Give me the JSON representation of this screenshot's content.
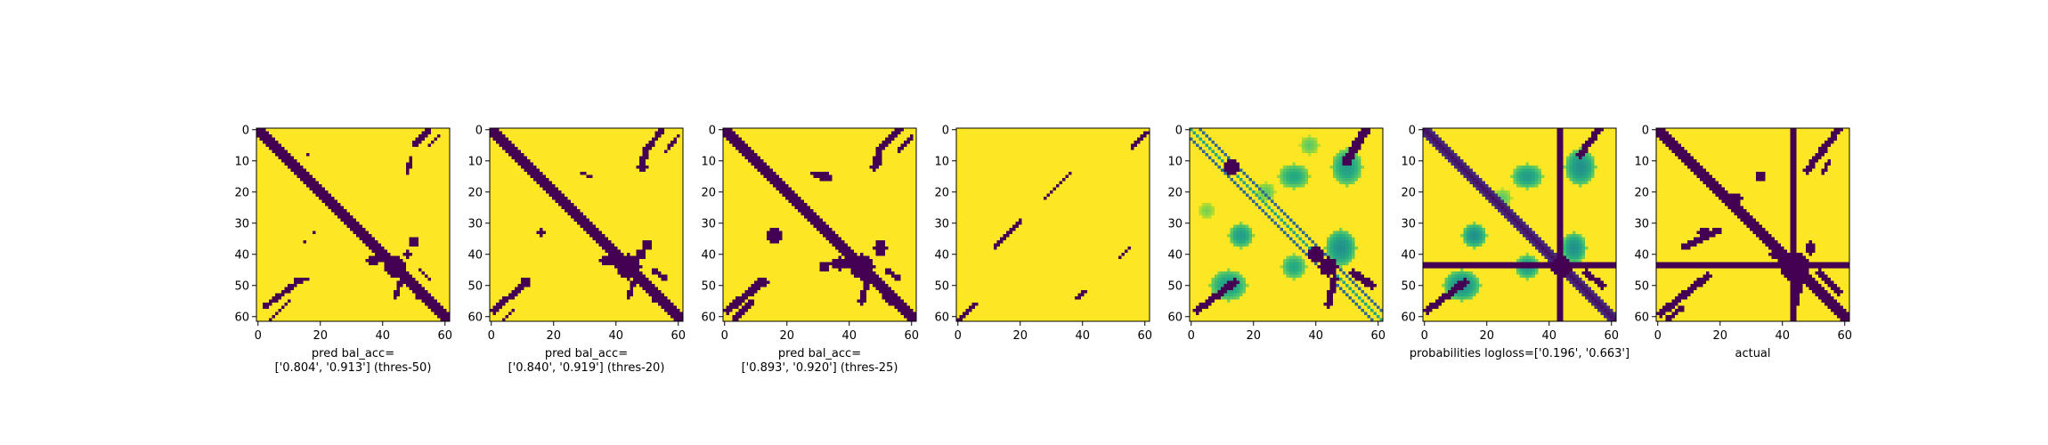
{
  "chart_data": [
    {
      "type": "heatmap",
      "xlabel": [
        "pred bal_acc=",
        "['0.804', '0.913'] (thres-50)"
      ],
      "x_ticks": [
        0,
        20,
        40,
        60
      ],
      "y_ticks": [
        0,
        10,
        20,
        30,
        40,
        50,
        60
      ],
      "xlim": [
        0,
        62
      ],
      "ylim": [
        62,
        0
      ],
      "colormap": "viridis",
      "binary": true,
      "diagonal": {
        "offset": 0,
        "halfwidth": 2
      },
      "blobs": [
        {
          "c": 44,
          "r": 44,
          "rx": 3.5,
          "ry": 3.5
        },
        {
          "c": 50,
          "r": 36,
          "rx": 1.5,
          "ry": 1.5
        },
        {
          "c": 37,
          "r": 42,
          "rx": 2.5,
          "ry": 1.2
        },
        {
          "c": 52,
          "r": 53,
          "rx": 1.6,
          "ry": 1.6
        },
        {
          "c": 48,
          "r": 40,
          "rx": 1.4,
          "ry": 1.4
        },
        {
          "c": 18,
          "r": 33,
          "rx": 0.8,
          "ry": 0.8
        },
        {
          "c": 15,
          "r": 36,
          "rx": 0.7,
          "ry": 0.7
        },
        {
          "c": 16,
          "r": 8,
          "rx": 0.7,
          "ry": 0.7
        }
      ],
      "lines": [
        {
          "x1": 2,
          "y1": 57,
          "x2": 14,
          "y2": 48,
          "w": 0.9
        },
        {
          "x1": 12,
          "y1": 48,
          "x2": 16,
          "y2": 48,
          "w": 0.8
        },
        {
          "x1": 4,
          "y1": 61,
          "x2": 10,
          "y2": 55,
          "w": 0.7
        },
        {
          "x1": 55,
          "y1": 0,
          "x2": 50,
          "y2": 5,
          "w": 0.8
        },
        {
          "x1": 58,
          "y1": 2,
          "x2": 55,
          "y2": 5,
          "w": 0.6
        },
        {
          "x1": 49,
          "y1": 9,
          "x2": 48,
          "y2": 14,
          "w": 0.7
        },
        {
          "x1": 52,
          "y1": 45,
          "x2": 55,
          "y2": 48,
          "w": 0.7
        },
        {
          "x1": 46,
          "y1": 48,
          "x2": 44,
          "y2": 54,
          "w": 0.8
        }
      ],
      "spots": []
    },
    {
      "type": "heatmap",
      "xlabel": [
        "pred bal_acc=",
        "['0.840', '0.919'] (thres-20)"
      ],
      "x_ticks": [
        0,
        20,
        40,
        60
      ],
      "y_ticks": [
        0,
        10,
        20,
        30,
        40,
        50,
        60
      ],
      "xlim": [
        0,
        62
      ],
      "ylim": [
        62,
        0
      ],
      "colormap": "viridis",
      "binary": true,
      "diagonal": {
        "offset": 0,
        "halfwidth": 2.4
      },
      "blobs": [
        {
          "c": 44,
          "r": 44,
          "rx": 4,
          "ry": 4
        },
        {
          "c": 50,
          "r": 37,
          "rx": 1.8,
          "ry": 1.8
        },
        {
          "c": 38,
          "r": 42,
          "rx": 3,
          "ry": 1.4
        },
        {
          "c": 53,
          "r": 54,
          "rx": 1.8,
          "ry": 1.8
        },
        {
          "c": 48,
          "r": 40,
          "rx": 1.6,
          "ry": 1.6
        },
        {
          "c": 16,
          "r": 33,
          "rx": 1,
          "ry": 1.6
        },
        {
          "c": 31,
          "r": 15,
          "rx": 0.7,
          "ry": 0.7
        },
        {
          "c": 11,
          "r": 49,
          "rx": 1.6,
          "ry": 1.6
        },
        {
          "c": 49,
          "r": 12,
          "rx": 1.2,
          "ry": 1.2
        }
      ],
      "lines": [
        {
          "x1": 1,
          "y1": 58,
          "x2": 10,
          "y2": 50,
          "w": 1
        },
        {
          "x1": 4,
          "y1": 61,
          "x2": 7,
          "y2": 58,
          "w": 0.7
        },
        {
          "x1": 55,
          "y1": 0,
          "x2": 50,
          "y2": 6,
          "w": 0.9
        },
        {
          "x1": 60,
          "y1": 2,
          "x2": 56,
          "y2": 7,
          "w": 0.6
        },
        {
          "x1": 50,
          "y1": 6,
          "x2": 48,
          "y2": 12,
          "w": 1
        },
        {
          "x1": 52,
          "y1": 45,
          "x2": 56,
          "y2": 48,
          "w": 0.8
        },
        {
          "x1": 46,
          "y1": 48,
          "x2": 44,
          "y2": 54,
          "w": 0.9
        },
        {
          "x1": 29,
          "y1": 14,
          "x2": 32,
          "y2": 15,
          "w": 0.6
        }
      ],
      "spots": []
    },
    {
      "type": "heatmap",
      "xlabel": [
        "pred bal_acc=",
        "['0.893', '0.920'] (thres-25)"
      ],
      "x_ticks": [
        0,
        20,
        40,
        60
      ],
      "y_ticks": [
        0,
        10,
        20,
        30,
        40,
        50,
        60
      ],
      "xlim": [
        0,
        62
      ],
      "ylim": [
        62,
        0
      ],
      "colormap": "viridis",
      "binary": true,
      "diagonal": {
        "offset": 0,
        "halfwidth": 2.4
      },
      "blobs": [
        {
          "c": 44,
          "r": 44,
          "rx": 4,
          "ry": 4
        },
        {
          "c": 50,
          "r": 38,
          "rx": 2,
          "ry": 2.5
        },
        {
          "c": 37,
          "r": 43,
          "rx": 3.2,
          "ry": 2
        },
        {
          "c": 53,
          "r": 54,
          "rx": 2,
          "ry": 2
        },
        {
          "c": 16,
          "r": 34,
          "rx": 2.2,
          "ry": 2.5
        },
        {
          "c": 32,
          "r": 15,
          "rx": 2.4,
          "ry": 1.8
        },
        {
          "c": 12,
          "r": 49,
          "rx": 2.2,
          "ry": 1.6
        },
        {
          "c": 49,
          "r": 10,
          "rx": 1.6,
          "ry": 2
        },
        {
          "c": 32,
          "r": 44,
          "rx": 1.6,
          "ry": 1.6
        }
      ],
      "lines": [
        {
          "x1": 1,
          "y1": 58,
          "x2": 12,
          "y2": 49,
          "w": 1.2
        },
        {
          "x1": 3,
          "y1": 61,
          "x2": 9,
          "y2": 55,
          "w": 0.8
        },
        {
          "x1": 56,
          "y1": 0,
          "x2": 50,
          "y2": 6,
          "w": 1
        },
        {
          "x1": 60,
          "y1": 2,
          "x2": 56,
          "y2": 7,
          "w": 0.7
        },
        {
          "x1": 50,
          "y1": 6,
          "x2": 48,
          "y2": 12,
          "w": 1.1
        },
        {
          "x1": 52,
          "y1": 45,
          "x2": 56,
          "y2": 48,
          "w": 0.9
        },
        {
          "x1": 46,
          "y1": 48,
          "x2": 44,
          "y2": 55,
          "w": 1
        },
        {
          "x1": 28,
          "y1": 14,
          "x2": 34,
          "y2": 16,
          "w": 0.9
        }
      ],
      "spots": []
    },
    {
      "type": "heatmap",
      "xlabel": [],
      "x_ticks": [
        0,
        20,
        40,
        60
      ],
      "y_ticks": [
        0,
        10,
        20,
        30,
        40,
        50,
        60
      ],
      "xlim": [
        0,
        62
      ],
      "ylim": [
        62,
        0
      ],
      "colormap": "viridis",
      "binary": true,
      "diagonal": null,
      "blobs": [],
      "lines": [
        {
          "x1": 0,
          "y1": 61.5,
          "x2": 6,
          "y2": 55.5,
          "w": 0.45
        },
        {
          "x1": 11.5,
          "y1": 38,
          "x2": 20.5,
          "y2": 29,
          "w": 0.45
        },
        {
          "x1": 27.5,
          "y1": 22.5,
          "x2": 36,
          "y2": 14,
          "w": 0.45
        },
        {
          "x1": 38,
          "y1": 54.5,
          "x2": 41,
          "y2": 51.5,
          "w": 0.45
        },
        {
          "x1": 51.5,
          "y1": 41.5,
          "x2": 55,
          "y2": 38,
          "w": 0.45
        },
        {
          "x1": 55.5,
          "y1": 6,
          "x2": 61,
          "y2": 0.5,
          "w": 0.45
        }
      ],
      "spots": []
    },
    {
      "type": "heatmap",
      "xlabel": [],
      "x_ticks": [
        0,
        20,
        40,
        60
      ],
      "y_ticks": [
        0,
        10,
        20,
        30,
        40,
        50,
        60
      ],
      "xlim": [
        0,
        62
      ],
      "ylim": [
        62,
        0
      ],
      "colormap": "viridis",
      "binary": false,
      "diagonal": {
        "offset": 3,
        "halfwidth": 0.7,
        "double": true
      },
      "blobs": [
        {
          "c": 44,
          "r": 44,
          "rx": 3,
          "ry": 3
        },
        {
          "c": 40,
          "r": 40,
          "rx": 2.5,
          "ry": 2.5
        },
        {
          "c": 13,
          "r": 12,
          "rx": 2.5,
          "ry": 2.5
        }
      ],
      "lines": [
        {
          "x1": 2,
          "y1": 58,
          "x2": 14,
          "y2": 49,
          "w": 1.2
        },
        {
          "x1": 56,
          "y1": 0,
          "x2": 50,
          "y2": 10,
          "w": 1.5
        },
        {
          "x1": 52,
          "y1": 46,
          "x2": 58,
          "y2": 50,
          "w": 1.2
        },
        {
          "x1": 46,
          "y1": 48,
          "x2": 44,
          "y2": 56,
          "w": 1.2
        }
      ],
      "spots": [
        {
          "c": 50,
          "r": 12,
          "rx": 5,
          "ry": 6,
          "v": 0.55
        },
        {
          "c": 33,
          "r": 15,
          "rx": 5,
          "ry": 4,
          "v": 0.6
        },
        {
          "c": 16,
          "r": 34,
          "rx": 4,
          "ry": 4,
          "v": 0.55
        },
        {
          "c": 48,
          "r": 38,
          "rx": 5,
          "ry": 6,
          "v": 0.5
        },
        {
          "c": 12,
          "r": 50,
          "rx": 6,
          "ry": 5,
          "v": 0.55
        },
        {
          "c": 33,
          "r": 44,
          "rx": 4,
          "ry": 4,
          "v": 0.6
        },
        {
          "c": 38,
          "r": 5,
          "rx": 3,
          "ry": 3,
          "v": 0.75
        },
        {
          "c": 5,
          "r": 26,
          "rx": 2.5,
          "ry": 2.5,
          "v": 0.8
        },
        {
          "c": 24,
          "r": 20,
          "rx": 3,
          "ry": 3,
          "v": 0.75
        }
      ]
    },
    {
      "type": "heatmap",
      "xlabel": [
        "probabilities logloss=['0.196', '0.663']"
      ],
      "x_ticks": [
        0,
        20,
        40,
        60
      ],
      "y_ticks": [
        0,
        10,
        20,
        30,
        40,
        50,
        60
      ],
      "xlim": [
        0,
        62
      ],
      "ylim": [
        62,
        0
      ],
      "colormap": "viridis",
      "binary": false,
      "diagonal": {
        "offset": 0,
        "halfwidth": 2.2,
        "soft": true
      },
      "bars": {
        "col": 43.5,
        "row": 43.5,
        "halfwidth": 0.8
      },
      "blobs": [
        {
          "c": 44,
          "r": 44,
          "rx": 3.5,
          "ry": 3.5
        }
      ],
      "lines": [
        {
          "x1": 1,
          "y1": 58,
          "x2": 13,
          "y2": 49,
          "w": 1.2
        },
        {
          "x1": 56,
          "y1": 0,
          "x2": 50,
          "y2": 8,
          "w": 1.2
        },
        {
          "x1": 52,
          "y1": 46,
          "x2": 57,
          "y2": 50,
          "w": 1
        }
      ],
      "spots": [
        {
          "c": 50,
          "r": 12,
          "rx": 5,
          "ry": 6,
          "v": 0.5
        },
        {
          "c": 33,
          "r": 15,
          "rx": 5,
          "ry": 4,
          "v": 0.55
        },
        {
          "c": 16,
          "r": 34,
          "rx": 4,
          "ry": 4,
          "v": 0.5
        },
        {
          "c": 48,
          "r": 38,
          "rx": 4,
          "ry": 5,
          "v": 0.5
        },
        {
          "c": 12,
          "r": 50,
          "rx": 6,
          "ry": 5,
          "v": 0.5
        },
        {
          "c": 33,
          "r": 44,
          "rx": 4,
          "ry": 4,
          "v": 0.55
        },
        {
          "c": 25,
          "r": 22,
          "rx": 3,
          "ry": 3,
          "v": 0.75
        }
      ]
    },
    {
      "type": "heatmap",
      "xlabel": [
        "actual"
      ],
      "x_ticks": [
        0,
        20,
        40,
        60
      ],
      "y_ticks": [
        0,
        10,
        20,
        30,
        40,
        50,
        60
      ],
      "xlim": [
        0,
        62
      ],
      "ylim": [
        62,
        0
      ],
      "colormap": "viridis",
      "binary": true,
      "diagonal": {
        "offset": 0,
        "halfwidth": 2.2
      },
      "bars": {
        "col": 43.5,
        "row": 43.5,
        "halfwidth": 0.8
      },
      "blobs": [
        {
          "c": 44,
          "r": 44,
          "rx": 4.5,
          "ry": 4.5
        },
        {
          "c": 39,
          "r": 40,
          "rx": 3,
          "ry": 2
        },
        {
          "c": 15,
          "r": 33,
          "rx": 2.5,
          "ry": 1.6
        },
        {
          "c": 25,
          "r": 22,
          "rx": 2,
          "ry": 1.6
        },
        {
          "c": 33,
          "r": 15,
          "rx": 1.6,
          "ry": 1.6
        },
        {
          "c": 49,
          "r": 38,
          "rx": 1.8,
          "ry": 2.2
        }
      ],
      "lines": [
        {
          "x1": 1,
          "y1": 59,
          "x2": 16,
          "y2": 47,
          "w": 1.1
        },
        {
          "x1": 3,
          "y1": 61,
          "x2": 8,
          "y2": 57,
          "w": 0.8
        },
        {
          "x1": 58,
          "y1": 0,
          "x2": 48,
          "y2": 13,
          "w": 1.1
        },
        {
          "x1": 55,
          "y1": 10,
          "x2": 53,
          "y2": 14,
          "w": 0.7
        },
        {
          "x1": 52,
          "y1": 46,
          "x2": 58,
          "y2": 52,
          "w": 1
        },
        {
          "x1": 46,
          "y1": 48,
          "x2": 44,
          "y2": 56,
          "w": 1
        },
        {
          "x1": 8,
          "y1": 38,
          "x2": 20,
          "y2": 32,
          "w": 0.9
        }
      ],
      "spots": []
    }
  ],
  "colors": {
    "low": "#440154",
    "high": "#fde725"
  }
}
